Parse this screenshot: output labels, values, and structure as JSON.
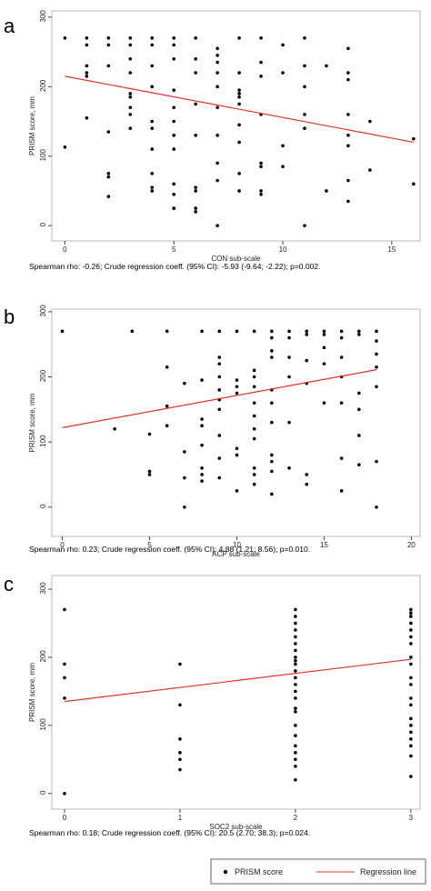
{
  "chart_data": [
    {
      "type": "scatter",
      "panel": "a",
      "x_label": "CON sub-scale",
      "y_label": "PRISM score, mm",
      "caption": "Spearman rho: -0.26;   Crude regression coeff. (95% CI): -5.93 (-9.64; -2.22); p=0.002.",
      "xlim": [
        -0.6,
        16.3
      ],
      "ylim": [
        -22,
        309
      ],
      "xticks": [
        0,
        5,
        10,
        15
      ],
      "yticks": [
        0,
        100,
        200,
        300
      ],
      "point_color": "#000000",
      "line_color": "#e8302a",
      "points": {
        "x": [
          0,
          0,
          1,
          1,
          1,
          1,
          1,
          1,
          2,
          2,
          2,
          2,
          2,
          2,
          2,
          3,
          3,
          3,
          3,
          3,
          3,
          3,
          3,
          3,
          4,
          4,
          4,
          4,
          4,
          4,
          4,
          4,
          4,
          4,
          5,
          5,
          5,
          5,
          5,
          5,
          5,
          5,
          5,
          5,
          5,
          6,
          6,
          6,
          6,
          6,
          6,
          6,
          6,
          6,
          7,
          7,
          7,
          7,
          7,
          7,
          7,
          7,
          7,
          7,
          8,
          8,
          8,
          8,
          8,
          8,
          8,
          8,
          8,
          8,
          9,
          9,
          9,
          9,
          9,
          9,
          9,
          9,
          10,
          10,
          10,
          10,
          11,
          11,
          11,
          11,
          11,
          11,
          12,
          12,
          13,
          13,
          13,
          13,
          13,
          13,
          13,
          13,
          14,
          14,
          16,
          16
        ],
        "y": [
          270,
          113,
          270,
          260,
          230,
          220,
          215,
          155,
          270,
          260,
          230,
          135,
          75,
          70,
          42,
          270,
          260,
          240,
          220,
          190,
          185,
          170,
          160,
          140,
          270,
          260,
          230,
          200,
          150,
          140,
          110,
          75,
          55,
          50,
          270,
          260,
          240,
          195,
          170,
          150,
          130,
          110,
          60,
          45,
          25,
          270,
          240,
          220,
          175,
          130,
          55,
          50,
          25,
          20,
          255,
          245,
          235,
          220,
          200,
          170,
          130,
          90,
          65,
          0,
          270,
          220,
          195,
          190,
          185,
          175,
          145,
          120,
          75,
          50,
          270,
          235,
          215,
          160,
          90,
          85,
          50,
          45,
          260,
          220,
          115,
          85,
          270,
          230,
          200,
          160,
          140,
          0,
          230,
          50,
          255,
          220,
          210,
          160,
          130,
          115,
          65,
          35,
          150,
          80,
          125,
          60
        ]
      },
      "regression": {
        "x": [
          0,
          16
        ],
        "y": [
          215,
          120
        ]
      }
    },
    {
      "type": "scatter",
      "panel": "b",
      "x_label": "ACP sub-scale",
      "y_label": "PRISM score, mm",
      "caption": "Spearman rho: 0.23;   Crude regression coeff. (95% CI): 4.88 (1.21; 8.56); p=0.010.",
      "xlim": [
        -0.6,
        20.5
      ],
      "ylim": [
        -45,
        304
      ],
      "xticks": [
        0,
        5,
        10,
        15,
        20
      ],
      "yticks": [
        0,
        100,
        200,
        300
      ],
      "point_color": "#000000",
      "line_color": "#e8302a",
      "points": {
        "x": [
          0,
          3,
          4,
          5,
          5,
          5,
          6,
          6,
          6,
          6,
          7,
          7,
          7,
          7,
          8,
          8,
          8,
          8,
          8,
          8,
          8,
          8,
          9,
          9,
          9,
          9,
          9,
          9,
          9,
          9,
          9,
          9,
          10,
          10,
          10,
          10,
          10,
          10,
          10,
          11,
          11,
          11,
          11,
          11,
          11,
          11,
          11,
          11,
          11,
          11,
          12,
          12,
          12,
          12,
          12,
          12,
          12,
          12,
          12,
          12,
          12,
          13,
          13,
          13,
          13,
          13,
          13,
          14,
          14,
          14,
          14,
          14,
          14,
          15,
          15,
          15,
          15,
          15,
          16,
          16,
          16,
          16,
          16,
          16,
          16,
          17,
          17,
          17,
          17,
          17,
          17,
          18,
          18,
          18,
          18,
          18,
          18,
          18
        ],
        "y": [
          270,
          120,
          270,
          112,
          55,
          50,
          270,
          215,
          155,
          125,
          190,
          85,
          45,
          0,
          270,
          195,
          135,
          125,
          95,
          60,
          50,
          40,
          270,
          230,
          220,
          200,
          180,
          165,
          150,
          110,
          75,
          45,
          270,
          195,
          185,
          175,
          90,
          80,
          25,
          270,
          210,
          200,
          185,
          160,
          140,
          120,
          105,
          60,
          50,
          35,
          270,
          260,
          240,
          230,
          180,
          160,
          130,
          80,
          70,
          55,
          20,
          270,
          260,
          230,
          200,
          130,
          60,
          270,
          265,
          225,
          190,
          50,
          35,
          270,
          265,
          245,
          220,
          160,
          270,
          260,
          230,
          200,
          160,
          75,
          25,
          270,
          265,
          175,
          150,
          110,
          65,
          270,
          255,
          235,
          215,
          185,
          70,
          0
        ]
      },
      "regression": {
        "x": [
          0,
          18
        ],
        "y": [
          122,
          211
        ]
      }
    },
    {
      "type": "scatter",
      "panel": "c",
      "x_label": "SOC2 sub-scale",
      "y_label": "PRISM score, mm",
      "caption": "Spearman rho: 0.18;   Crude regression coeff. (95% CI): 20.5 (2.70; 38.3); p=0.024.",
      "xlim": [
        -0.11,
        3.08
      ],
      "ylim": [
        -23,
        320
      ],
      "xticks": [
        0,
        1,
        2,
        3
      ],
      "yticks": [
        0,
        100,
        200,
        300
      ],
      "point_color": "#000000",
      "line_color": "#e8302a",
      "points": {
        "x": [
          0,
          0,
          0,
          0,
          0,
          1,
          1,
          1,
          1,
          1,
          1,
          2,
          2,
          2,
          2,
          2,
          2,
          2,
          2,
          2,
          2,
          2,
          2,
          2,
          2,
          2,
          2,
          2,
          2,
          2,
          2,
          2,
          2,
          2,
          2,
          3,
          3,
          3,
          3,
          3,
          3,
          3,
          3,
          3,
          3,
          3,
          3,
          3,
          3,
          3,
          3,
          3,
          3,
          3,
          3
        ],
        "y": [
          270,
          190,
          170,
          140,
          0,
          190,
          130,
          80,
          60,
          50,
          35,
          270,
          260,
          250,
          240,
          230,
          220,
          210,
          200,
          195,
          190,
          180,
          170,
          160,
          150,
          140,
          125,
          120,
          100,
          85,
          70,
          60,
          50,
          40,
          20,
          270,
          265,
          260,
          250,
          240,
          230,
          220,
          200,
          190,
          170,
          160,
          140,
          130,
          110,
          100,
          90,
          80,
          70,
          55,
          25
        ]
      },
      "regression": {
        "x": [
          0,
          3
        ],
        "y": [
          135,
          197
        ]
      }
    }
  ],
  "legend": {
    "items": [
      "PRISM score",
      "Regression line"
    ]
  }
}
